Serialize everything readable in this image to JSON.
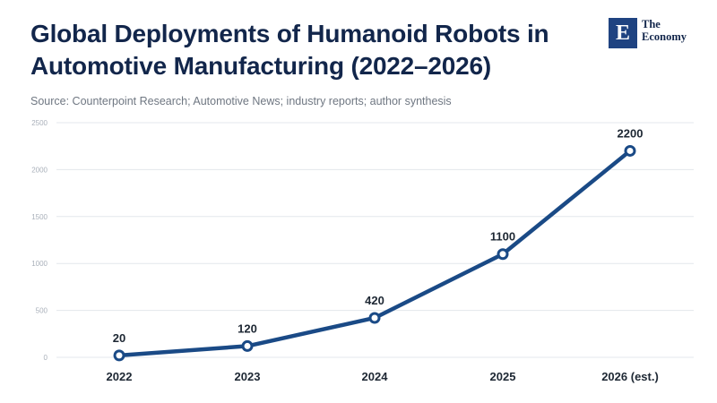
{
  "header": {
    "title": "Global Deployments of Humanoid Robots in Automotive Manufacturing (2022–2026)",
    "source": "Source: Counterpoint Research; Automotive News; industry reports; author synthesis"
  },
  "logo": {
    "mark": "E",
    "line1": "The",
    "line2": "Economy"
  },
  "colors": {
    "line": "#1a4a86",
    "grid": "#e3e7ec",
    "title": "#12264b"
  },
  "chart_data": {
    "type": "line",
    "title": "Global Deployments of Humanoid Robots in Automotive Manufacturing (2022–2026)",
    "categories": [
      "2022",
      "2023",
      "2024",
      "2025",
      "2026 (est.)"
    ],
    "series": [
      {
        "values": [
          20,
          120,
          420,
          1100,
          2200
        ]
      }
    ],
    "data_labels": [
      "20",
      "120",
      "420",
      "1100",
      "2200"
    ],
    "yticks": [
      0,
      500,
      1000,
      1500,
      2000,
      2500
    ],
    "ylim": [
      0,
      2500
    ],
    "grid": true,
    "legend": "none"
  }
}
